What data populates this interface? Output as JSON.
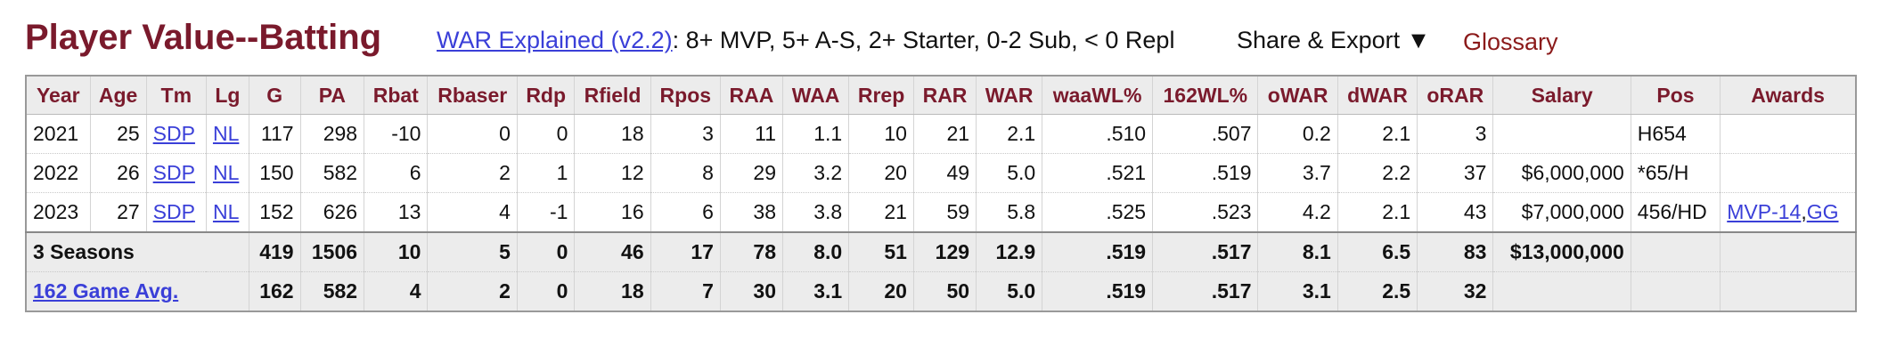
{
  "page": {
    "title": "Player Value--Batting",
    "war_link": "WAR Explained (v2.2)",
    "war_scale": ": 8+ MVP, 5+ A-S, 2+ Starter, 0-2 Sub, < 0 Repl",
    "share_label": "Share & Export",
    "share_caret": "▼",
    "glossary_label": "Glossary"
  },
  "table": {
    "columns": [
      "Year",
      "Age",
      "Tm",
      "Lg",
      "G",
      "PA",
      "Rbat",
      "Rbaser",
      "Rdp",
      "Rfield",
      "Rpos",
      "RAA",
      "WAA",
      "Rrep",
      "RAR",
      "WAR",
      "waaWL%",
      "162WL%",
      "oWAR",
      "dWAR",
      "oRAR",
      "Salary",
      "Pos",
      "Awards"
    ],
    "rows": [
      {
        "year": "2021",
        "age": "25",
        "tm": "SDP",
        "lg": "NL",
        "g": "117",
        "pa": "298",
        "rbat": "-10",
        "rbaser": "0",
        "rdp": "0",
        "rfield": "18",
        "rpos": "3",
        "raa": "11",
        "waa": "1.1",
        "rrep": "10",
        "rar": "21",
        "war": "2.1",
        "waawl": ".510",
        "wl162": ".507",
        "owar": "0.2",
        "dwar": "2.1",
        "orar": "3",
        "salary": "",
        "pos": "H654",
        "award1": "",
        "award_sep": "",
        "award2": ""
      },
      {
        "year": "2022",
        "age": "26",
        "tm": "SDP",
        "lg": "NL",
        "g": "150",
        "pa": "582",
        "rbat": "6",
        "rbaser": "2",
        "rdp": "1",
        "rfield": "12",
        "rpos": "8",
        "raa": "29",
        "waa": "3.2",
        "rrep": "20",
        "rar": "49",
        "war": "5.0",
        "waawl": ".521",
        "wl162": ".519",
        "owar": "3.7",
        "dwar": "2.2",
        "orar": "37",
        "salary": "$6,000,000",
        "pos": "*65/H",
        "award1": "",
        "award_sep": "",
        "award2": ""
      },
      {
        "year": "2023",
        "age": "27",
        "tm": "SDP",
        "lg": "NL",
        "g": "152",
        "pa": "626",
        "rbat": "13",
        "rbaser": "4",
        "rdp": "-1",
        "rfield": "16",
        "rpos": "6",
        "raa": "38",
        "waa": "3.8",
        "rrep": "21",
        "rar": "59",
        "war": "5.8",
        "waawl": ".525",
        "wl162": ".523",
        "owar": "4.2",
        "dwar": "2.1",
        "orar": "43",
        "salary": "$7,000,000",
        "pos": "456/HD",
        "award1": "MVP-14",
        "award_sep": ",",
        "award2": "GG"
      }
    ],
    "totals": {
      "label": "3 Seasons",
      "g": "419",
      "pa": "1506",
      "rbat": "10",
      "rbaser": "5",
      "rdp": "0",
      "rfield": "46",
      "rpos": "17",
      "raa": "78",
      "waa": "8.0",
      "rrep": "51",
      "rar": "129",
      "war": "12.9",
      "waawl": ".519",
      "wl162": ".517",
      "owar": "8.1",
      "dwar": "6.5",
      "orar": "83",
      "salary": "$13,000,000"
    },
    "avg": {
      "label": "162 Game Avg.",
      "g": "162",
      "pa": "582",
      "rbat": "4",
      "rbaser": "2",
      "rdp": "0",
      "rfield": "18",
      "rpos": "7",
      "raa": "30",
      "waa": "3.1",
      "rrep": "20",
      "rar": "50",
      "war": "5.0",
      "waawl": ".519",
      "wl162": ".517",
      "owar": "3.1",
      "dwar": "2.5",
      "orar": "32"
    }
  },
  "colors": {
    "title": "#7a1a2c",
    "link": "#3a3fd8",
    "glossary": "#8b1a1a",
    "header_bg": "#ececec"
  }
}
